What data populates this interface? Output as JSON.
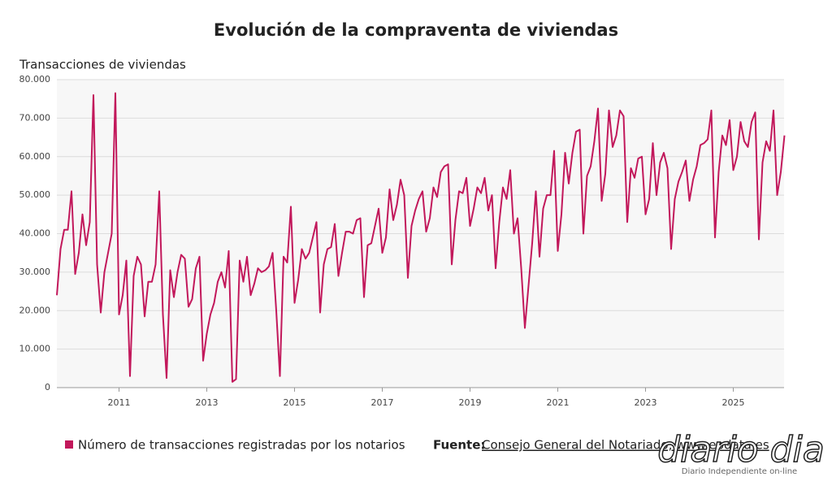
{
  "chart_data": {
    "type": "line",
    "title": "Evolución de la compraventa de viviendas",
    "y_axis_title": "Transacciones de viviendas",
    "source_label": "Fuente:",
    "source": "Consejo General del Notariado, www.epdata.es",
    "watermark": {
      "text": "diario dia",
      "subtitle": "Diario Independiente on-line"
    },
    "categories": [
      null,
      null,
      null,
      null,
      null,
      null,
      null,
      null,
      null,
      null,
      null,
      null,
      null,
      null,
      null,
      null,
      null,
      "2011",
      null,
      null,
      null,
      null,
      null,
      null,
      null,
      null,
      null,
      null,
      null,
      null,
      null,
      null,
      null,
      null,
      null,
      null,
      null,
      null,
      null,
      null,
      null,
      "2013",
      null,
      null,
      null,
      null,
      null,
      null,
      null,
      null,
      null,
      null,
      null,
      null,
      null,
      null,
      null,
      null,
      null,
      null,
      null,
      null,
      null,
      null,
      null,
      "2015",
      null,
      null,
      null,
      null,
      null,
      null,
      null,
      null,
      null,
      null,
      null,
      null,
      null,
      null,
      null,
      null,
      null,
      null,
      null,
      null,
      null,
      null,
      null,
      "2017",
      null,
      null,
      null,
      null,
      null,
      null,
      null,
      null,
      null,
      null,
      null,
      null,
      null,
      null,
      null,
      null,
      null,
      null,
      null,
      null,
      null,
      null,
      null,
      "2019",
      null,
      null,
      null,
      null,
      null,
      null,
      null,
      null,
      null,
      null,
      null,
      null,
      null,
      null,
      null,
      null,
      null,
      null,
      null,
      null,
      null,
      null,
      null,
      "2021",
      null,
      null,
      null,
      null,
      null,
      null,
      null,
      null,
      null,
      null,
      null,
      null,
      null,
      null,
      null,
      null,
      null,
      null,
      null,
      null,
      null,
      null,
      null,
      "2023",
      null,
      null,
      null,
      null,
      null,
      null,
      null,
      null,
      null,
      null,
      null,
      null,
      null,
      null,
      null,
      null,
      null,
      null,
      null,
      null,
      null,
      null,
      null,
      "2025",
      null,
      null,
      null,
      null,
      null,
      null,
      null,
      null,
      null,
      null,
      null,
      null,
      null,
      null
    ],
    "series": [
      {
        "name": "Número de transacciones registradas por los notarios",
        "color": "#c2185b",
        "values": [
          24000,
          36000,
          41000,
          41000,
          51000,
          29500,
          35000,
          45000,
          37000,
          43000,
          76000,
          32000,
          19500,
          30000,
          35000,
          40000,
          76500,
          19000,
          24000,
          33000,
          3000,
          29000,
          34000,
          32000,
          18500,
          27500,
          27500,
          32000,
          51000,
          19000,
          2500,
          30500,
          23500,
          30000,
          34500,
          33500,
          21000,
          23000,
          31000,
          34000,
          7000,
          14000,
          19000,
          22000,
          27500,
          30000,
          26000,
          35500,
          1500,
          2200,
          33000,
          27500,
          34000,
          24000,
          27000,
          31000,
          30000,
          30500,
          31500,
          35000,
          20000,
          3000,
          34000,
          32500,
          47000,
          22000,
          28000,
          36000,
          33500,
          35000,
          39000,
          43000,
          19500,
          32000,
          36000,
          36500,
          42500,
          29000,
          35000,
          40500,
          40500,
          40000,
          43500,
          44000,
          23500,
          37000,
          37500,
          42000,
          46500,
          35000,
          39000,
          51500,
          43500,
          47500,
          54000,
          50000,
          28500,
          42000,
          46000,
          49000,
          51000,
          40500,
          44000,
          52000,
          49500,
          56000,
          57500,
          58000,
          32000,
          43500,
          51000,
          50500,
          54500,
          42000,
          46500,
          52000,
          50500,
          54500,
          46000,
          50000,
          31000,
          43000,
          52000,
          49000,
          56500,
          40000,
          44000,
          31000,
          15500,
          26500,
          37500,
          51000,
          34000,
          46500,
          50000,
          50000,
          61500,
          35500,
          45000,
          61000,
          53000,
          61000,
          66500,
          67000,
          40000,
          55000,
          57500,
          64000,
          72500,
          48500,
          55500,
          72000,
          62500,
          65500,
          72000,
          70500,
          43000,
          57000,
          54500,
          59500,
          60000,
          45000,
          49000,
          63500,
          50000,
          58500,
          61000,
          57000,
          36000,
          49000,
          53500,
          56000,
          59000,
          48500,
          54000,
          57500,
          63000,
          63500,
          64500,
          72000,
          39000,
          56000,
          65500,
          63000,
          69500,
          56500,
          60000,
          69000,
          64000,
          62500,
          69000,
          71500,
          38500,
          58500,
          64000,
          61500,
          72000,
          50000,
          56000,
          65500
        ]
      }
    ],
    "ylim": [
      0,
      80000
    ],
    "yticks": [
      0,
      {
        "value": 10000,
        "label": "10.000"
      },
      {
        "value": 20000,
        "label": "20.000"
      },
      {
        "value": 30000,
        "label": "30.000"
      },
      {
        "value": 40000,
        "label": "40.000"
      },
      {
        "value": 50000,
        "label": "50.000"
      },
      {
        "value": 60000,
        "label": "60.000"
      },
      {
        "value": 70000,
        "label": "70.000"
      },
      {
        "value": 80000,
        "label": "80.000"
      }
    ],
    "grid": true,
    "legend": "bottom-left"
  }
}
